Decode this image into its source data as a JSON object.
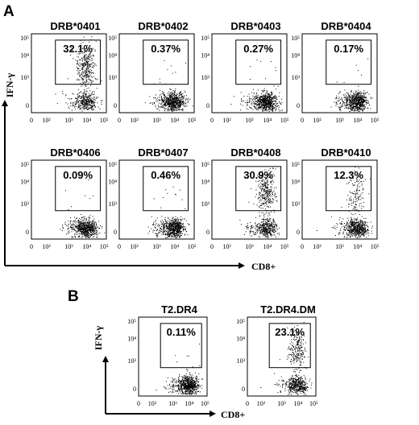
{
  "panel_labels": [
    "A",
    "B"
  ],
  "axis_titles": {
    "y": "IFN-γ",
    "x": "CD8+"
  },
  "tick_labels": {
    "x": [
      "0",
      "10²",
      "10³",
      "10⁴",
      "10⁵"
    ],
    "y": [
      "0",
      "10³",
      "10⁴",
      "10⁵"
    ]
  },
  "chart_data": [
    {
      "type": "scatter",
      "panel": "A",
      "title": "DRB*0401",
      "gate_percent": "32.1%",
      "positive_fraction": 0.321
    },
    {
      "type": "scatter",
      "panel": "A",
      "title": "DRB*0402",
      "gate_percent": "0.37%",
      "positive_fraction": 0.0037
    },
    {
      "type": "scatter",
      "panel": "A",
      "title": "DRB*0403",
      "gate_percent": "0.27%",
      "positive_fraction": 0.0027
    },
    {
      "type": "scatter",
      "panel": "A",
      "title": "DRB*0404",
      "gate_percent": "0.17%",
      "positive_fraction": 0.0017
    },
    {
      "type": "scatter",
      "panel": "A",
      "title": "DRB*0406",
      "gate_percent": "0.09%",
      "positive_fraction": 0.0009
    },
    {
      "type": "scatter",
      "panel": "A",
      "title": "DRB*0407",
      "gate_percent": "0.46%",
      "positive_fraction": 0.0046
    },
    {
      "type": "scatter",
      "panel": "A",
      "title": "DRB*0408",
      "gate_percent": "30.9%",
      "positive_fraction": 0.309
    },
    {
      "type": "scatter",
      "panel": "A",
      "title": "DRB*0410",
      "gate_percent": "12.3%",
      "positive_fraction": 0.123
    },
    {
      "type": "scatter",
      "panel": "B",
      "title": "T2.DR4",
      "gate_percent": "0.11%",
      "positive_fraction": 0.0011
    },
    {
      "type": "scatter",
      "panel": "B",
      "title": "T2.DR4.DM",
      "gate_percent": "23.1%",
      "positive_fraction": 0.231
    }
  ]
}
